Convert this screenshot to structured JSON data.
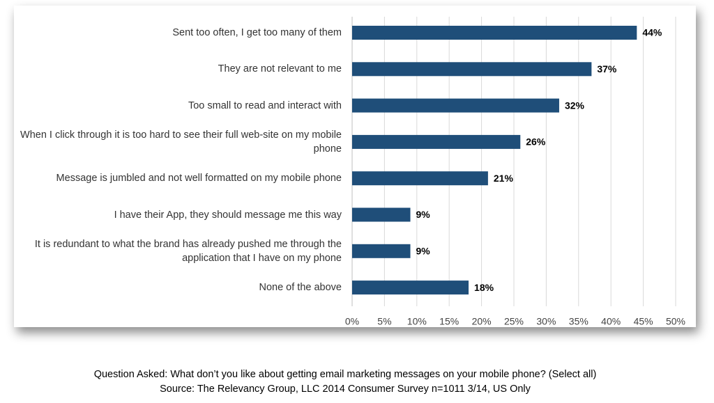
{
  "chart_data": {
    "type": "barh",
    "categories": [
      "Sent too often, I get too many of them",
      "They are not relevant to me",
      "Too small to read and interact with",
      "When I click through it is too hard to see their full web-site on my mobile phone",
      "Message is jumbled and not well formatted on my mobile phone",
      "I have their App, they should message me this way",
      "It is redundant to what the brand has already pushed me through the application that I have on my phone",
      "None of the above"
    ],
    "values": [
      44,
      37,
      32,
      26,
      21,
      9,
      9,
      18
    ],
    "value_labels": [
      "44%",
      "37%",
      "32%",
      "26%",
      "21%",
      "9%",
      "9%",
      "18%"
    ],
    "color": "#1f4e79",
    "xlim": [
      0,
      50
    ],
    "xticks": [
      {
        "value": 0,
        "label": "0%"
      },
      {
        "value": 5,
        "label": "5%"
      },
      {
        "value": 10,
        "label": "10%"
      },
      {
        "value": 15,
        "label": "15%"
      },
      {
        "value": 20,
        "label": "20%"
      },
      {
        "value": 25,
        "label": "25%"
      },
      {
        "value": 30,
        "label": "30%"
      },
      {
        "value": 35,
        "label": "35%"
      },
      {
        "value": 40,
        "label": "40%"
      },
      {
        "value": 45,
        "label": "45%"
      },
      {
        "value": 50,
        "label": "50%"
      }
    ],
    "grid": true,
    "caption": [
      "Question Asked: What don’t you like about getting email marketing messages on your mobile phone? (Select all)",
      "Source: The Relevancy Group, LLC 2014 Consumer Survey n=1011 3/14, US Only"
    ]
  }
}
